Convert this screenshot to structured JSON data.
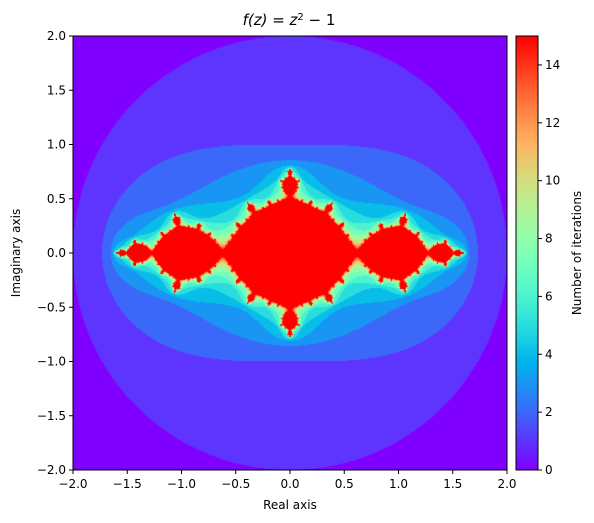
{
  "chart_data": {
    "type": "heatmap",
    "title_prefix": "f(z) = z",
    "title_exponent": "2",
    "title_suffix": " − 1",
    "function": "z^2 - 1",
    "xlabel": "Real axis",
    "ylabel": "Imaginary axis",
    "xlim": [
      -2.0,
      2.0
    ],
    "ylim": [
      -2.0,
      2.0
    ],
    "x_ticks": [
      -2.0,
      -1.5,
      -1.0,
      -0.5,
      0.0,
      0.5,
      1.0,
      1.5,
      2.0
    ],
    "x_tick_labels": [
      "−2.0",
      "−1.5",
      "−1.0",
      "−0.5",
      "0.0",
      "0.5",
      "1.0",
      "1.5",
      "2.0"
    ],
    "y_ticks": [
      -2.0,
      -1.5,
      -1.0,
      -0.5,
      0.0,
      0.5,
      1.0,
      1.5,
      2.0
    ],
    "y_tick_labels": [
      "−2.0",
      "−1.5",
      "−1.0",
      "−0.5",
      "0.0",
      "0.5",
      "1.0",
      "1.5",
      "2.0"
    ],
    "max_iterations": 15,
    "escape_radius": 2,
    "colorbar": {
      "label": "Number of iterations",
      "range": [
        0,
        15
      ],
      "ticks": [
        0,
        2,
        4,
        6,
        8,
        10,
        12,
        14
      ],
      "tick_labels": [
        "0",
        "2",
        "4",
        "6",
        "8",
        "10",
        "12",
        "14"
      ],
      "colormap": "rainbow"
    },
    "grid": false
  }
}
